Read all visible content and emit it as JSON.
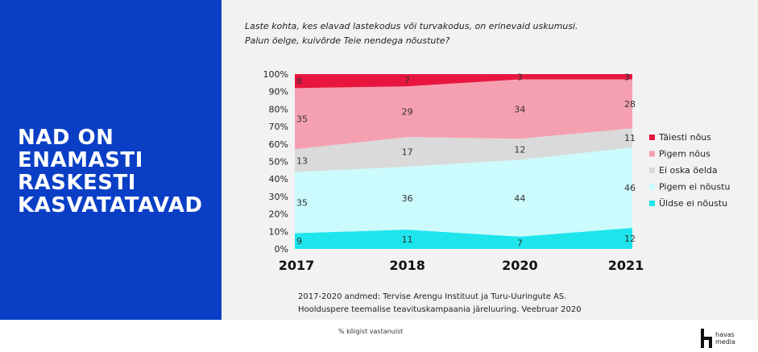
{
  "headline": [
    "NAD ON ENAMASTI",
    "RASKESTI",
    "KASVATATAVAD"
  ],
  "question": [
    "Laste kohta, kes elavad lastekodus või turvakodus, on erinevaid uskumusi.",
    "Palun öelge, kuivõrde Teie nendega nõustute?"
  ],
  "source": [
    "2017-2020 andmed: Tervise Arengu Instituut ja Turu-Uuringute AS.",
    "Hoolduspere teemalise teavituskampaania järeluuring. Veebruar 2020"
  ],
  "footnote": "% kõigist vastanuist",
  "logo": {
    "text1": "havas",
    "text2": "media"
  },
  "chart_data": {
    "type": "area",
    "stacked": true,
    "categories": [
      "2017",
      "2018",
      "2020",
      "2021"
    ],
    "ylim": [
      0,
      100
    ],
    "yticks": [
      "0%",
      "10%",
      "20%",
      "30%",
      "40%",
      "50%",
      "60%",
      "70%",
      "80%",
      "90%",
      "100%"
    ],
    "legend_position": "right",
    "series": [
      {
        "name": "Üldse ei nõustu",
        "values": [
          9,
          11,
          7,
          12
        ],
        "labels": [
          "9",
          "11",
          "7",
          "12"
        ],
        "color": "#1ee5ec"
      },
      {
        "name": "Pigem ei nõustu",
        "values": [
          35,
          36,
          44,
          46
        ],
        "labels": [
          "35",
          "36",
          "44",
          "46"
        ],
        "color": "#cbfbfc"
      },
      {
        "name": "Ei oska öelda",
        "values": [
          13,
          17,
          12,
          11
        ],
        "labels": [
          "13",
          "17",
          "12",
          "11"
        ],
        "color": "#dadada"
      },
      {
        "name": "Pigem nõus",
        "values": [
          35,
          29,
          34,
          28
        ],
        "labels": [
          "35",
          "29",
          "34",
          "28"
        ],
        "color": "#f5a0b1"
      },
      {
        "name": "Täiesti nõus",
        "values": [
          8,
          7,
          3,
          3
        ],
        "labels": [
          "8",
          "7",
          "3",
          "3"
        ],
        "color": "#e8163f"
      }
    ]
  }
}
